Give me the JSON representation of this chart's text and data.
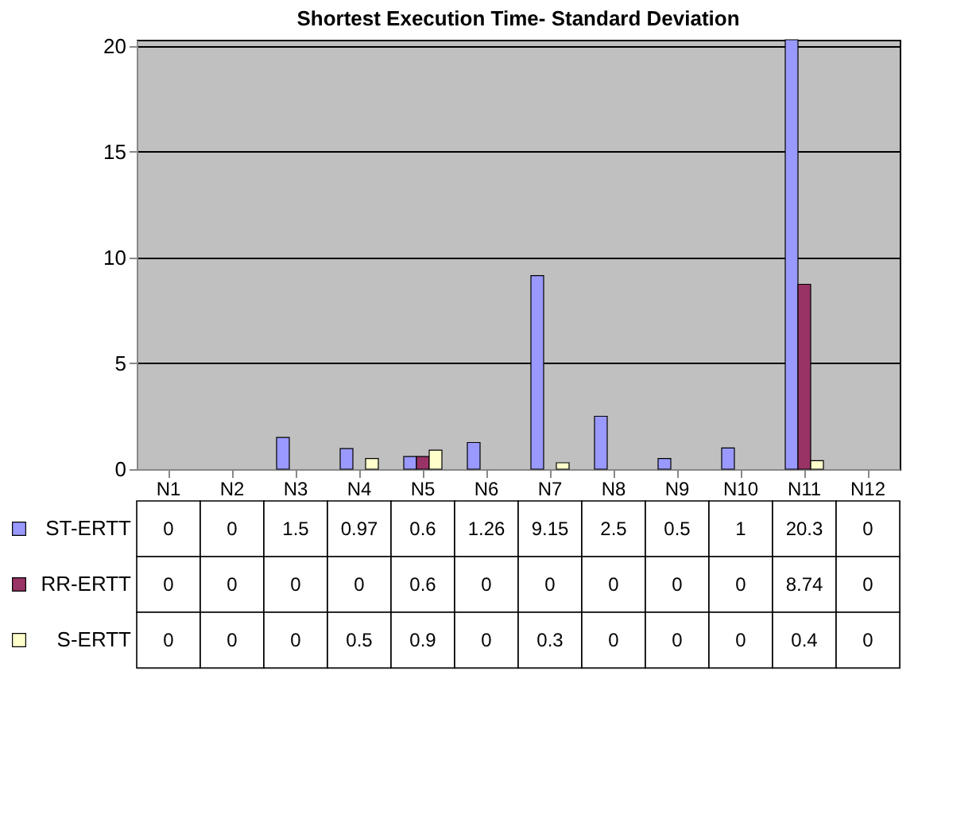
{
  "chart_data": {
    "type": "bar",
    "title": "Shortest Execution Time- Standard Deviation",
    "categories": [
      "N1",
      "N2",
      "N3",
      "N4",
      "N5",
      "N6",
      "N7",
      "N8",
      "N9",
      "N10",
      "N11",
      "N12"
    ],
    "series": [
      {
        "name": "ST-ERTT",
        "color": "#9999ff",
        "values": [
          0,
          0,
          1.5,
          0.97,
          0.6,
          1.26,
          9.15,
          2.5,
          0.5,
          1,
          20.3,
          0
        ]
      },
      {
        "name": "RR-ERTT",
        "color": "#993366",
        "values": [
          0,
          0,
          0,
          0,
          0.6,
          0,
          0,
          0,
          0,
          0,
          8.74,
          0
        ]
      },
      {
        "name": "S-ERTT",
        "color": "#ffffcc",
        "values": [
          0,
          0,
          0,
          0.5,
          0.9,
          0,
          0.3,
          0,
          0,
          0,
          0.4,
          0
        ]
      }
    ],
    "ylim": [
      0,
      20.3
    ],
    "yticks": [
      0,
      5,
      10,
      15,
      20
    ],
    "grid": "y",
    "legend": "bottom left",
    "data_labels": true
  }
}
